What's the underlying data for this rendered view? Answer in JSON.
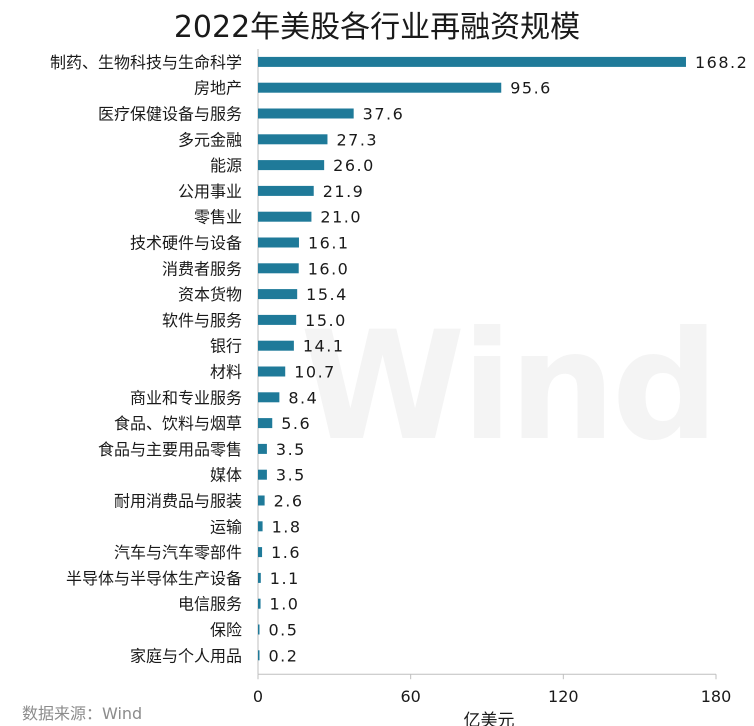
{
  "title": "2022年美股各行业再融资规模",
  "source": "数据来源：Wind",
  "watermark": "Wind",
  "colors": {
    "bar": "#1f7a99",
    "text": "#1a1a1a",
    "axis": "#bfbfbf"
  },
  "chart_data": {
    "type": "bar",
    "orientation": "horizontal",
    "title": "2022年美股各行业再融资规模",
    "xlabel": "亿美元",
    "ylabel": "",
    "xlim": [
      0,
      180
    ],
    "xticks": [
      0,
      60,
      120,
      180
    ],
    "grid": false,
    "categories": [
      "制药、生物科技与生命科学",
      "房地产",
      "医疗保健设备与服务",
      "多元金融",
      "能源",
      "公用事业",
      "零售业",
      "技术硬件与设备",
      "消费者服务",
      "资本货物",
      "软件与服务",
      "银行",
      "材料",
      "商业和专业服务",
      "食品、饮料与烟草",
      "食品与主要用品零售",
      "媒体",
      "耐用消费品与服装",
      "运输",
      "汽车与汽车零部件",
      "半导体与半导体生产设备",
      "电信服务",
      "保险",
      "家庭与个人用品"
    ],
    "values": [
      168.2,
      95.6,
      37.6,
      27.3,
      26.0,
      21.9,
      21.0,
      16.1,
      16.0,
      15.4,
      15.0,
      14.1,
      10.7,
      8.4,
      5.6,
      3.5,
      3.5,
      2.6,
      1.8,
      1.6,
      1.1,
      1.0,
      0.5,
      0.2
    ],
    "value_labels": [
      "168.2",
      "95.6",
      "37.6",
      "27.3",
      "26.0",
      "21.9",
      "21.0",
      "16.1",
      "16.0",
      "15.4",
      "15.0",
      "14.1",
      "10.7",
      "8.4",
      "5.6",
      "3.5",
      "3.5",
      "2.6",
      "1.8",
      "1.6",
      "1.1",
      "1.0",
      "0.5",
      "0.2"
    ]
  }
}
